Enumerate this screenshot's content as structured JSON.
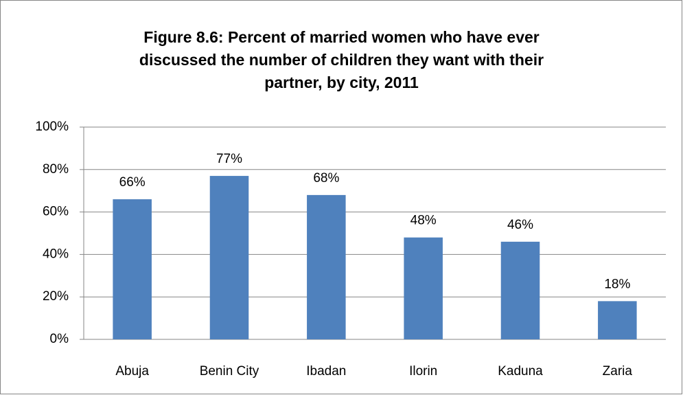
{
  "chart_data": {
    "type": "bar",
    "title": "Figure 8.6: Percent of married women who have ever discussed the number of children they want with their partner, by city, 2011",
    "categories": [
      "Abuja",
      "Benin City",
      "Ibadan",
      "Ilorin",
      "Kaduna",
      "Zaria"
    ],
    "values": [
      66,
      77,
      68,
      48,
      46,
      18
    ],
    "value_labels": [
      "66%",
      "77%",
      "68%",
      "48%",
      "46%",
      "18%"
    ],
    "color": "#4f81bd",
    "ylim": [
      0,
      100
    ],
    "yticks": [
      {
        "value": 0,
        "label": "0%"
      },
      {
        "value": 20,
        "label": "20%"
      },
      {
        "value": 40,
        "label": "40%"
      },
      {
        "value": 60,
        "label": "60%"
      },
      {
        "value": 80,
        "label": "80%"
      },
      {
        "value": 100,
        "label": "100%"
      }
    ],
    "grid": true
  }
}
